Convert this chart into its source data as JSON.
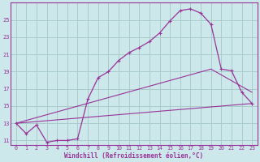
{
  "xlabel": "Windchill (Refroidissement éolien,°C)",
  "background_color": "#cce8ea",
  "grid_color": "#aacccc",
  "line_color": "#993399",
  "xlim": [
    -0.5,
    23.5
  ],
  "ylim": [
    10.5,
    27.0
  ],
  "yticks": [
    11,
    13,
    15,
    17,
    19,
    21,
    23,
    25
  ],
  "xticks": [
    0,
    1,
    2,
    3,
    4,
    5,
    6,
    7,
    8,
    9,
    10,
    11,
    12,
    13,
    14,
    15,
    16,
    17,
    18,
    19,
    20,
    21,
    22,
    23
  ],
  "series1_x": [
    0,
    1,
    2,
    3,
    4,
    5,
    6,
    7,
    8,
    9,
    10,
    11,
    12,
    13,
    14,
    15,
    16,
    17,
    18,
    19,
    20,
    21,
    22,
    23
  ],
  "series1_y": [
    13.0,
    11.8,
    12.8,
    10.8,
    11.0,
    11.0,
    11.2,
    15.8,
    18.3,
    19.0,
    20.3,
    21.2,
    21.8,
    22.5,
    23.5,
    24.9,
    26.1,
    26.3,
    25.8,
    24.5,
    19.3,
    19.1,
    16.6,
    15.3
  ],
  "series2_x": [
    0,
    23
  ],
  "series2_y": [
    13.0,
    15.3
  ],
  "series3_x": [
    0,
    19,
    23
  ],
  "series3_y": [
    13.0,
    19.3,
    16.6
  ]
}
